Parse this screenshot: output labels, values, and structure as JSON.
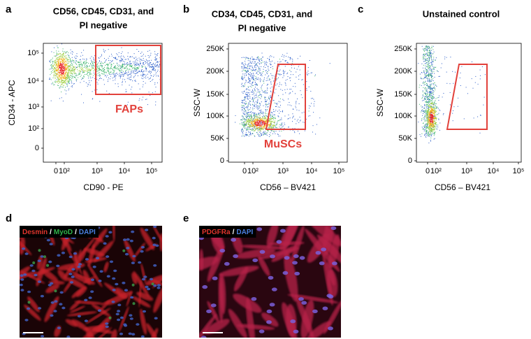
{
  "panels": [
    {
      "letter": "a",
      "title": [
        "CD56, CD45, CD31, and",
        "PI negative"
      ],
      "y_label": "CD34 - APC",
      "x_label": "CD90 - PE",
      "y_ticks": [
        "10⁵",
        "10⁴",
        "10³",
        "10²",
        "0"
      ],
      "x_ticks": [
        "0",
        "10²",
        "10³",
        "10⁴",
        "10⁵"
      ],
      "gate_label": "FAPs"
    },
    {
      "letter": "b",
      "title": [
        "CD34, CD45, CD31, and",
        "PI negative"
      ],
      "y_label": "SSC-W",
      "x_label": "CD56 – BV421",
      "y_ticks": [
        "250K",
        "200K",
        "150K",
        "100K",
        "50K",
        "0"
      ],
      "x_ticks": [
        "0",
        "10²",
        "10³",
        "10⁴",
        "10⁵"
      ],
      "gate_label": "MuSCs"
    },
    {
      "letter": "c",
      "title": [
        "Unstained control"
      ],
      "y_label": "SSC-W",
      "x_label": "CD56 – BV421",
      "y_ticks": [
        "250K",
        "200K",
        "150K",
        "100K",
        "50K",
        "0"
      ],
      "x_ticks": [
        "0",
        "10²",
        "10³",
        "10⁴",
        "10⁵"
      ]
    },
    {
      "letter": "d",
      "caption": [
        "Desmin",
        "/",
        "MyoD",
        "/",
        "DAPI"
      ]
    },
    {
      "letter": "e",
      "caption": [
        "PDGFRa",
        "/",
        "DAPI"
      ]
    }
  ]
}
